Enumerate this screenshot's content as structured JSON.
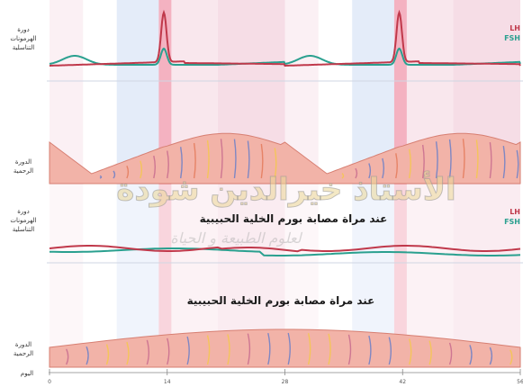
{
  "panel_labels": {
    "hormone_top": [
      "دورة",
      "الهرمونات",
      "التناسلية"
    ],
    "uterine_top": [
      "الدورة",
      "الرحمية"
    ],
    "hormone_bottom": [
      "دورة",
      "الهرمونات",
      "التناسلية"
    ],
    "uterine_bottom": [
      "الدورة",
      "الرحمية"
    ]
  },
  "legend": {
    "top": [
      {
        "text": "LH",
        "color": "#c0394b"
      },
      {
        "text": "FSH",
        "color": "#2aa08f"
      }
    ],
    "bottom": [
      {
        "text": "LH",
        "color": "#c0394b"
      },
      {
        "text": "FSH",
        "color": "#2aa08f"
      }
    ]
  },
  "captions": {
    "hormone_bottom": "عند مراة مصابة بورم الخلية الحبيبية",
    "uterine_bottom": "عند مراة مصابة بورم الخلية الحبيبية"
  },
  "watermark": {
    "line1": "الأستاذ خيرالدين شودة",
    "line2": "لعلوم الطبيعة و الحياة"
  },
  "axis": {
    "label": "اليوم",
    "ticks": [
      "0",
      "14",
      "28",
      "42",
      "56"
    ]
  },
  "colors": {
    "lh": "#c0394b",
    "fsh": "#2aa08f",
    "tissue": "#f2b3a8",
    "phase_blue": "#e4ecf9",
    "phase_pink": "#f6dde6",
    "ovulation": "#f2a4b6"
  }
}
